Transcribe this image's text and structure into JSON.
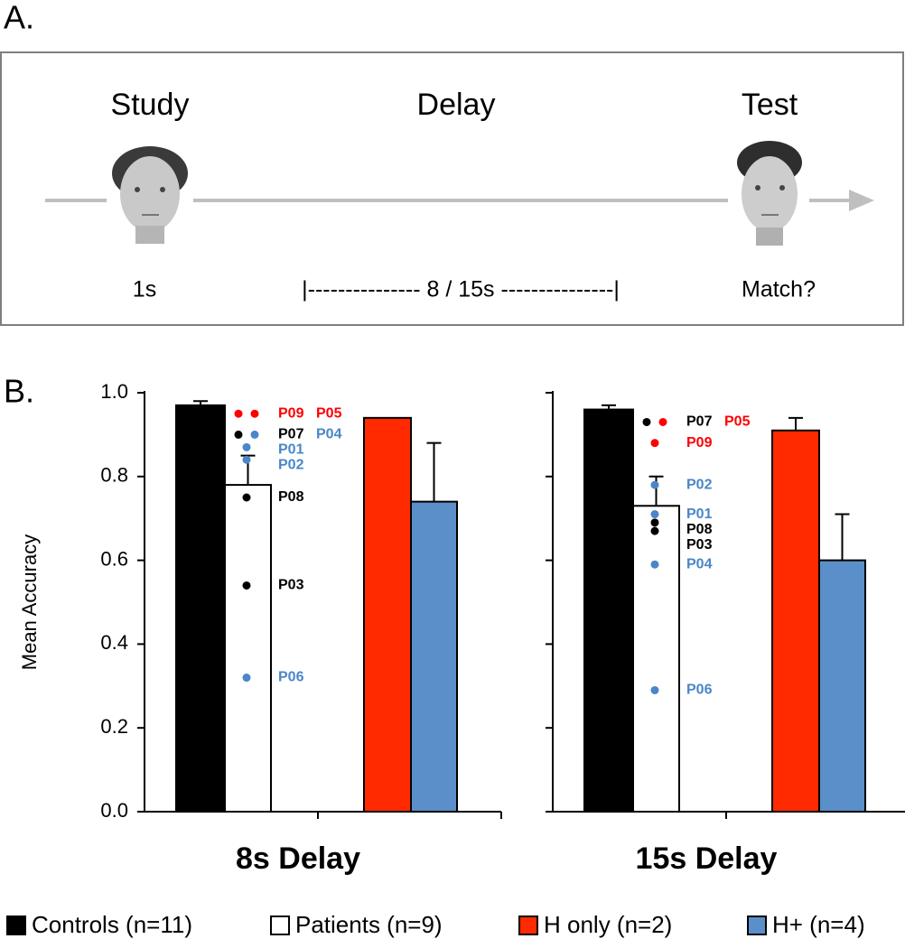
{
  "panel_a": {
    "label": "A.",
    "study": "Study",
    "delay": "Delay",
    "test": "Test",
    "study_time": "1s",
    "delay_time": "|--------------- 8 / 15s ---------------|",
    "test_prompt": "Match?"
  },
  "panel_b_label": "B.",
  "legend": {
    "entries": [
      {
        "name": "Controls (n=11)",
        "color": "#000000"
      },
      {
        "name": "Patients (n=9)",
        "color": "#ffffff"
      },
      {
        "name": "H only (n=2)",
        "color": "#ff2a00"
      },
      {
        "name": "H+ (n=4)",
        "color": "#5b8fc9"
      }
    ]
  },
  "chart_data": [
    {
      "type": "bar",
      "title": "8s Delay",
      "ylabel": "Mean Accuracy",
      "values": [
        0.97,
        0.78,
        0.94,
        0.74
      ],
      "errors": [
        0.01,
        0.07,
        null,
        0.14
      ],
      "ylim": [
        0,
        1
      ],
      "yticks": [
        {
          "value": 0,
          "label": "0.0"
        },
        0.2,
        0.4,
        0.6,
        0.8,
        {
          "value": 1,
          "label": "1.0"
        }
      ],
      "tick_labels": true,
      "points": [
        {
          "label": "P09",
          "value": 0.95,
          "color": "#ff0000"
        },
        {
          "label": "P05",
          "value": 0.95,
          "color": "#ff0000"
        },
        {
          "label": "P07",
          "value": 0.9,
          "color": "#000000"
        },
        {
          "label": "P04",
          "value": 0.9,
          "color": "#4a86c8"
        },
        {
          "label": "P01",
          "value": 0.87,
          "color": "#4a86c8"
        },
        {
          "label": "P02",
          "value": 0.84,
          "color": "#4a86c8"
        },
        {
          "label": "P08",
          "value": 0.75,
          "color": "#000000"
        },
        {
          "label": "P03",
          "value": 0.54,
          "color": "#000000"
        },
        {
          "label": "P06",
          "value": 0.32,
          "color": "#4a86c8"
        }
      ]
    },
    {
      "type": "bar",
      "title": "15s Delay",
      "values": [
        0.96,
        0.73,
        0.91,
        0.6
      ],
      "errors": [
        0.01,
        0.07,
        0.03,
        0.11
      ],
      "ylim": [
        0,
        1
      ],
      "yticks": [
        0,
        0.2,
        0.4,
        0.6,
        0.8,
        1
      ],
      "tick_labels": false,
      "points": [
        {
          "label": "P07",
          "value": 0.93,
          "color": "#000000"
        },
        {
          "label": "P05",
          "value": 0.93,
          "color": "#ff0000"
        },
        {
          "label": "P09",
          "value": 0.88,
          "color": "#ff0000"
        },
        {
          "label": "P02",
          "value": 0.78,
          "color": "#4a86c8"
        },
        {
          "label": "P01",
          "value": 0.71,
          "color": "#4a86c8"
        },
        {
          "label": "P08",
          "value": 0.69,
          "color": "#000000"
        },
        {
          "label": "P03",
          "value": 0.67,
          "color": "#000000"
        },
        {
          "label": "P04",
          "value": 0.59,
          "color": "#4a86c8"
        },
        {
          "label": "P06",
          "value": 0.29,
          "color": "#4a86c8"
        }
      ]
    }
  ]
}
